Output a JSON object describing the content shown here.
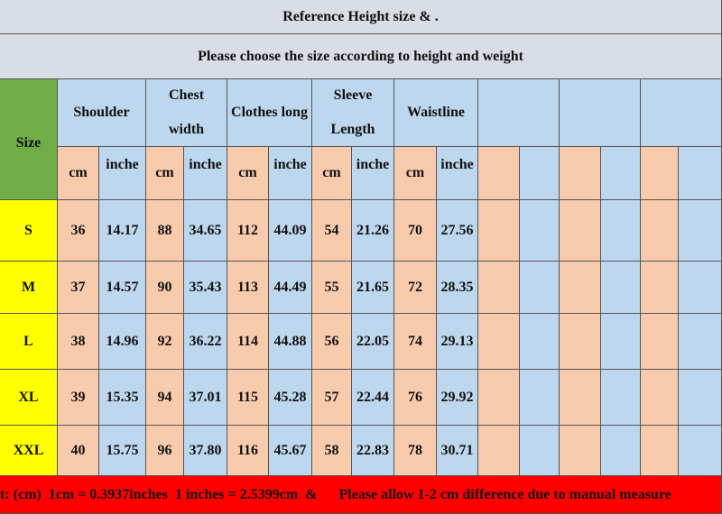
{
  "title": "Reference Height size  &  .",
  "subtitle": "Please choose the size according to height and weight",
  "size_label": "Size",
  "headers": [
    "Shoulder",
    "Chest width",
    "Clothes long",
    "Sleeve Length",
    "Waistline"
  ],
  "units": {
    "cm": "cm",
    "inch": "inche"
  },
  "rows": [
    {
      "size": "S",
      "values": [
        "36",
        "14.17",
        "88",
        "34.65",
        "112",
        "44.09",
        "54",
        "21.26",
        "70",
        "27.56"
      ]
    },
    {
      "size": "M",
      "values": [
        "37",
        "14.57",
        "90",
        "35.43",
        "113",
        "44.49",
        "55",
        "21.65",
        "72",
        "28.35"
      ]
    },
    {
      "size": "L",
      "values": [
        "38",
        "14.96",
        "92",
        "36.22",
        "114",
        "44.88",
        "56",
        "22.05",
        "74",
        "29.13"
      ]
    },
    {
      "size": "XL",
      "values": [
        "39",
        "15.35",
        "94",
        "37.01",
        "115",
        "45.28",
        "57",
        "22.44",
        "76",
        "29.92"
      ]
    },
    {
      "size": "XXL",
      "values": [
        "40",
        "15.75",
        "96",
        "37.80",
        "116",
        "45.67",
        "58",
        "22.83",
        "78",
        "30.71"
      ]
    }
  ],
  "footer": "t: (cm)  1cm = 0.3937inches  1 inches = 2.5399cm  &      Please allow 1-2 cm difference due to manual measure"
}
